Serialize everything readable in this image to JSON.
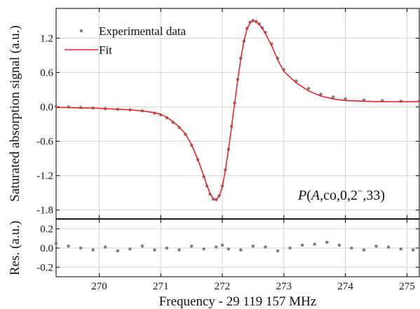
{
  "chart_data": [
    {
      "type": "scatter",
      "panel": "main",
      "xlabel": "Frequency - 29 119 157 MHz",
      "ylabel": "Saturated absorption signal (a.u.)",
      "xlim": [
        269.3,
        275.2
      ],
      "ylim": [
        -1.95,
        1.72
      ],
      "x_ticks": [
        270,
        271,
        272,
        273,
        274,
        275
      ],
      "x_tick_labels": [
        "270",
        "271",
        "272",
        "273",
        "274",
        "275"
      ],
      "y_ticks": [
        -1.8,
        -1.2,
        -0.6,
        0.0,
        0.6,
        1.2
      ],
      "y_tick_labels": [
        "-1.8",
        "-1.2",
        "-0.6",
        "0.0",
        "0.6",
        "1.2"
      ],
      "grid": true,
      "legend_position": "top-left",
      "annotation": {
        "prefix": "P",
        "open": "(",
        "italic_arg": "A",
        "rest": ",co,0,2",
        "sup": "−",
        "end": ",33)"
      },
      "series": [
        {
          "name": "Experimental data",
          "style": "markers",
          "color": "#808080",
          "x": [
            269.3,
            269.5,
            269.7,
            269.9,
            270.1,
            270.3,
            270.5,
            270.7,
            270.9,
            271.0,
            271.1,
            271.2,
            271.3,
            271.4,
            271.5,
            271.6,
            271.7,
            271.75,
            271.8,
            271.85,
            271.9,
            271.95,
            272.0,
            272.05,
            272.1,
            272.15,
            272.2,
            272.25,
            272.3,
            272.35,
            272.4,
            272.45,
            272.5,
            272.55,
            272.6,
            272.65,
            272.7,
            272.8,
            272.9,
            273.0,
            273.2,
            273.4,
            273.6,
            273.8,
            274.0,
            274.3,
            274.6,
            274.9,
            275.2
          ],
          "y": [
            0.01,
            0.0,
            -0.01,
            -0.02,
            -0.03,
            -0.04,
            -0.05,
            -0.07,
            -0.11,
            -0.14,
            -0.19,
            -0.27,
            -0.36,
            -0.48,
            -0.67,
            -0.92,
            -1.22,
            -1.38,
            -1.52,
            -1.61,
            -1.62,
            -1.55,
            -1.38,
            -1.1,
            -0.74,
            -0.34,
            0.07,
            0.48,
            0.85,
            1.15,
            1.37,
            1.48,
            1.51,
            1.49,
            1.45,
            1.38,
            1.3,
            1.1,
            0.85,
            0.65,
            0.45,
            0.32,
            0.22,
            0.17,
            0.14,
            0.12,
            0.11,
            0.1,
            0.1
          ]
        },
        {
          "name": "Fit",
          "style": "line",
          "color": "#e8262a",
          "x": [
            269.3,
            269.5,
            269.7,
            269.9,
            270.1,
            270.3,
            270.5,
            270.7,
            270.9,
            271.0,
            271.1,
            271.2,
            271.3,
            271.4,
            271.5,
            271.6,
            271.7,
            271.75,
            271.8,
            271.85,
            271.9,
            271.95,
            272.0,
            272.05,
            272.1,
            272.15,
            272.2,
            272.25,
            272.3,
            272.35,
            272.4,
            272.45,
            272.5,
            272.55,
            272.6,
            272.65,
            272.7,
            272.8,
            272.9,
            273.0,
            273.2,
            273.4,
            273.6,
            273.8,
            274.0,
            274.3,
            274.6,
            274.9,
            275.2
          ],
          "y": [
            -0.01,
            -0.01,
            -0.02,
            -0.02,
            -0.03,
            -0.04,
            -0.05,
            -0.07,
            -0.1,
            -0.13,
            -0.18,
            -0.26,
            -0.35,
            -0.47,
            -0.66,
            -0.91,
            -1.21,
            -1.37,
            -1.51,
            -1.6,
            -1.62,
            -1.56,
            -1.39,
            -1.11,
            -0.75,
            -0.35,
            0.06,
            0.47,
            0.84,
            1.14,
            1.36,
            1.47,
            1.5,
            1.49,
            1.44,
            1.37,
            1.28,
            1.07,
            0.82,
            0.62,
            0.42,
            0.28,
            0.19,
            0.14,
            0.11,
            0.1,
            0.09,
            0.09,
            0.09
          ]
        }
      ]
    },
    {
      "type": "scatter",
      "panel": "residuals",
      "xlabel": "Frequency - 29 119 157 MHz",
      "ylabel": "Res. (a.u.)",
      "xlim": [
        269.3,
        275.2
      ],
      "ylim": [
        -0.3,
        0.3
      ],
      "x_ticks": [
        270,
        271,
        272,
        273,
        274,
        275
      ],
      "x_tick_labels": [
        "270",
        "271",
        "272",
        "273",
        "274",
        "275"
      ],
      "y_ticks": [
        -0.2,
        0.0,
        0.2
      ],
      "y_tick_labels": [
        "-0.2",
        "0.0",
        "0.2"
      ],
      "grid": true,
      "series": [
        {
          "name": "",
          "style": "markers",
          "color": "#808080",
          "x": [
            269.3,
            269.5,
            269.7,
            269.9,
            270.1,
            270.3,
            270.5,
            270.7,
            270.9,
            271.1,
            271.3,
            271.5,
            271.7,
            271.9,
            272.0,
            272.1,
            272.3,
            272.5,
            272.7,
            272.9,
            273.1,
            273.3,
            273.5,
            273.7,
            273.9,
            274.1,
            274.3,
            274.5,
            274.7,
            274.9,
            275.1
          ],
          "y": [
            0.05,
            0.02,
            0.0,
            -0.02,
            0.01,
            -0.03,
            -0.01,
            0.02,
            -0.02,
            0.0,
            -0.02,
            0.02,
            -0.01,
            0.01,
            0.03,
            -0.01,
            -0.02,
            0.02,
            0.01,
            -0.03,
            0.0,
            0.03,
            0.04,
            0.06,
            0.03,
            0.0,
            -0.02,
            0.02,
            0.01,
            -0.01,
            -0.02
          ]
        }
      ]
    }
  ]
}
